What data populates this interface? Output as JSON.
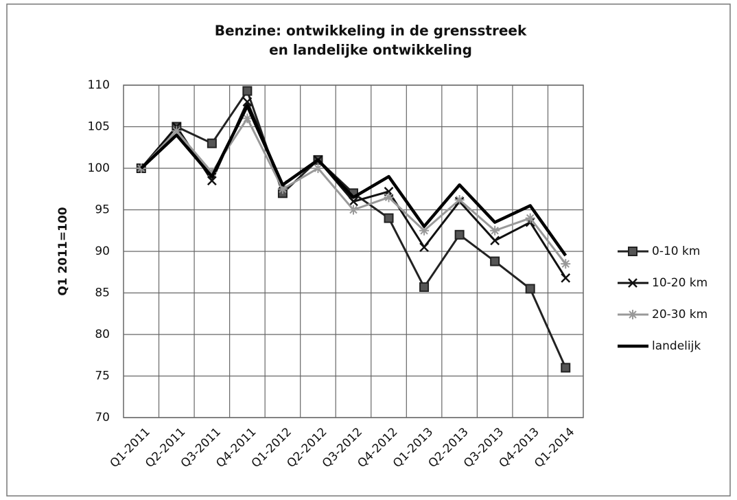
{
  "chart_data": {
    "type": "line",
    "title": "Benzine: ontwikkeling in de grensstreek",
    "subtitle": "en landelijke ontwikkeling",
    "y_label": "Q1 2011=100",
    "categories": [
      "Q1-2011",
      "Q2-2011",
      "Q3-2011",
      "Q4-2011",
      "Q1-2012",
      "Q2-2012",
      "Q3-2012",
      "Q4-2012",
      "Q1-2013",
      "Q2-2013",
      "Q3-2013",
      "Q4-2013",
      "Q1-2014"
    ],
    "series": [
      {
        "name": "0-10 km",
        "color": "#222222",
        "marker": "square",
        "values": [
          100,
          105,
          103,
          109.3,
          97,
          101,
          97,
          94,
          85.7,
          92,
          88.8,
          85.5,
          76
        ]
      },
      {
        "name": "10-20 km",
        "color": "#111111",
        "marker": "x",
        "values": [
          100,
          105,
          98.5,
          108,
          98,
          101,
          96,
          97.2,
          90.5,
          96,
          91.3,
          93.5,
          86.8
        ]
      },
      {
        "name": "20-30 km",
        "color": "#999999",
        "marker": "star",
        "values": [
          100,
          104.5,
          99.5,
          106,
          97.5,
          100,
          95,
          96.5,
          92.5,
          96.2,
          92.5,
          94,
          88.5
        ]
      },
      {
        "name": "landelijk",
        "color": "#000000",
        "marker": "none",
        "values": [
          100,
          104,
          99,
          107.5,
          98,
          101,
          96.5,
          99,
          93,
          98,
          93.5,
          95.5,
          89.5
        ]
      }
    ],
    "ylim": [
      70,
      110
    ],
    "yticks": [
      70,
      75,
      80,
      85,
      90,
      95,
      100,
      105,
      110
    ],
    "grid": true,
    "legend": "right"
  }
}
